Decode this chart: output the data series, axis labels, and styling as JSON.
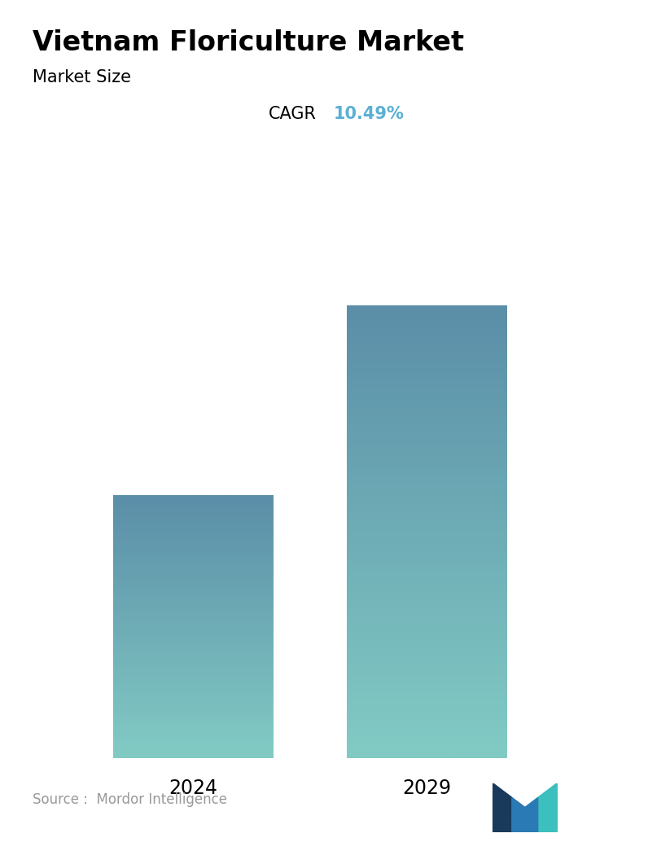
{
  "title": "Vietnam Floriculture Market",
  "subtitle": "Market Size",
  "cagr_label": "CAGR",
  "cagr_value": "10.49%",
  "cagr_color": "#5aafd4",
  "categories": [
    "2024",
    "2029"
  ],
  "values": [
    0.58,
    1.0
  ],
  "bar_color_top": "#5b8ea8",
  "bar_color_bottom": "#82cbc4",
  "bar_width": 0.28,
  "source_text": "Source :  Mordor Intelligence",
  "background_color": "#ffffff",
  "title_fontsize": 24,
  "subtitle_fontsize": 15,
  "cagr_fontsize": 15,
  "tick_fontsize": 17,
  "source_fontsize": 12,
  "x_positions": [
    0.27,
    0.68
  ]
}
